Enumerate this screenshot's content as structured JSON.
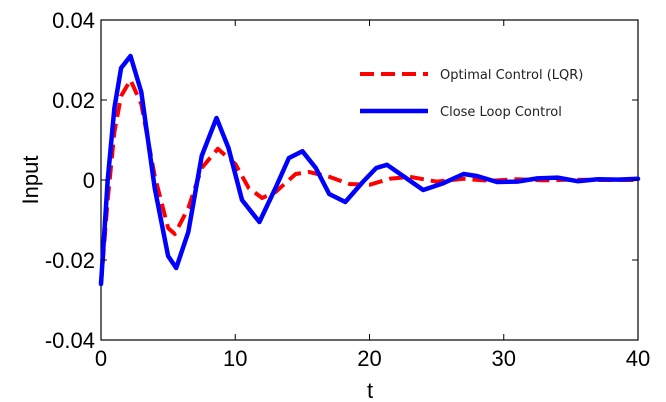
{
  "chart_data": {
    "type": "line",
    "xlabel": "t",
    "ylabel": "Input",
    "xlim": [
      0,
      40
    ],
    "ylim": [
      -0.04,
      0.04
    ],
    "x_ticks": [
      0,
      10,
      20,
      30,
      40
    ],
    "x_tick_labels": [
      "0",
      "10",
      "20",
      "30",
      "40"
    ],
    "y_ticks": [
      -0.04,
      -0.02,
      0,
      0.02,
      0.04
    ],
    "y_tick_labels": [
      "-0.04",
      "-0.02",
      "0",
      "0.02",
      "0.04"
    ],
    "grid": false,
    "legend_position": "top-right",
    "series": [
      {
        "name": "Optimal Control (LQR)",
        "color": "#ff0000",
        "style": "dashed",
        "x": [
          0,
          0.5,
          1,
          1.5,
          2.2,
          3,
          4,
          5,
          5.5,
          6.5,
          7.5,
          8.7,
          10,
          11,
          12,
          13,
          14.5,
          15.5,
          17,
          18.5,
          20,
          21.5,
          23,
          25,
          27,
          29,
          31,
          33,
          35,
          37,
          40
        ],
        "y": [
          -0.026,
          -0.005,
          0.012,
          0.021,
          0.025,
          0.019,
          0.001,
          -0.012,
          -0.0135,
          -0.007,
          0.003,
          0.0078,
          0.004,
          -0.002,
          -0.0045,
          -0.003,
          0.0015,
          0.002,
          0.0008,
          -0.001,
          -0.0012,
          0.0003,
          0.0008,
          -0.0004,
          0.0003,
          -0.0002,
          0.0002,
          -0.0001,
          0.0001,
          0,
          0
        ]
      },
      {
        "name": "Close Loop Control",
        "color": "#0000ff",
        "style": "solid",
        "x": [
          0,
          0.5,
          1,
          1.5,
          2.2,
          3,
          4,
          5,
          5.6,
          6.5,
          7.5,
          8.6,
          9.5,
          10.5,
          11.8,
          13,
          14,
          15,
          16,
          17,
          18.2,
          19.5,
          20.5,
          21.3,
          22.5,
          24,
          25.5,
          27,
          28,
          29.5,
          31,
          32.5,
          34,
          35.5,
          37,
          38.5,
          40
        ],
        "y": [
          -0.026,
          0.0,
          0.018,
          0.028,
          0.031,
          0.022,
          -0.002,
          -0.019,
          -0.022,
          -0.013,
          0.006,
          0.0155,
          0.008,
          -0.005,
          -0.0105,
          -0.002,
          0.0055,
          0.0072,
          0.003,
          -0.0035,
          -0.0055,
          -0.0005,
          0.003,
          0.0038,
          0.001,
          -0.0025,
          -0.0008,
          0.0015,
          0.001,
          -0.0005,
          -0.0004,
          0.0004,
          0.0006,
          -0.0003,
          0.0002,
          0.0001,
          0.0003
        ]
      }
    ]
  }
}
